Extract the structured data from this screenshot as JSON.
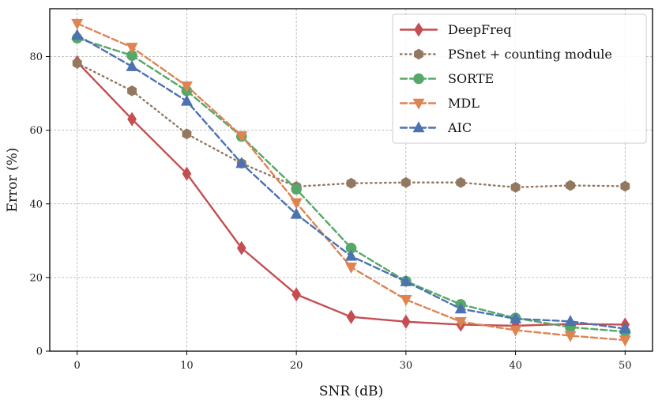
{
  "chart_data": {
    "type": "line",
    "title": "",
    "xlabel": "SNR (dB)",
    "ylabel": "Error (%)",
    "x": [
      0,
      5,
      10,
      15,
      20,
      25,
      30,
      35,
      40,
      45,
      50
    ],
    "xlim": [
      -2.5,
      52.5
    ],
    "ylim": [
      0,
      93
    ],
    "xticks": [
      0,
      10,
      20,
      30,
      40,
      50
    ],
    "yticks": [
      0,
      20,
      40,
      60,
      80
    ],
    "grid": true,
    "legend_position": "top-right",
    "series": [
      {
        "name": "DeepFreq",
        "color": "#c44e52",
        "line_style": "solid",
        "marker": "diamond",
        "values": [
          78.5,
          63.0,
          48.2,
          28.0,
          15.4,
          9.3,
          8.0,
          7.2,
          6.9,
          7.4,
          7.2
        ]
      },
      {
        "name": "PSnet + counting module",
        "color": "#937860",
        "line_style": "dotted",
        "marker": "hexagon",
        "values": [
          78.2,
          70.7,
          59.0,
          51.0,
          44.7,
          45.6,
          45.8,
          45.8,
          44.5,
          45.0,
          44.8
        ]
      },
      {
        "name": "SORTE",
        "color": "#55a868",
        "line_style": "dashed",
        "marker": "circle",
        "values": [
          85.0,
          80.3,
          70.7,
          58.3,
          44.0,
          28.0,
          19.0,
          12.7,
          9.0,
          6.5,
          5.3
        ]
      },
      {
        "name": "MDL",
        "color": "#dd8452",
        "line_style": "dashed",
        "marker": "triangle-down",
        "values": [
          89.0,
          82.5,
          72.0,
          58.5,
          40.3,
          22.8,
          14.0,
          8.0,
          5.7,
          4.2,
          3.0
        ]
      },
      {
        "name": "AIC",
        "color": "#4c72b0",
        "line_style": "dashed",
        "marker": "triangle-up",
        "values": [
          85.8,
          77.3,
          67.9,
          51.0,
          37.2,
          25.8,
          18.9,
          11.5,
          8.8,
          8.1,
          6.1
        ]
      }
    ]
  }
}
